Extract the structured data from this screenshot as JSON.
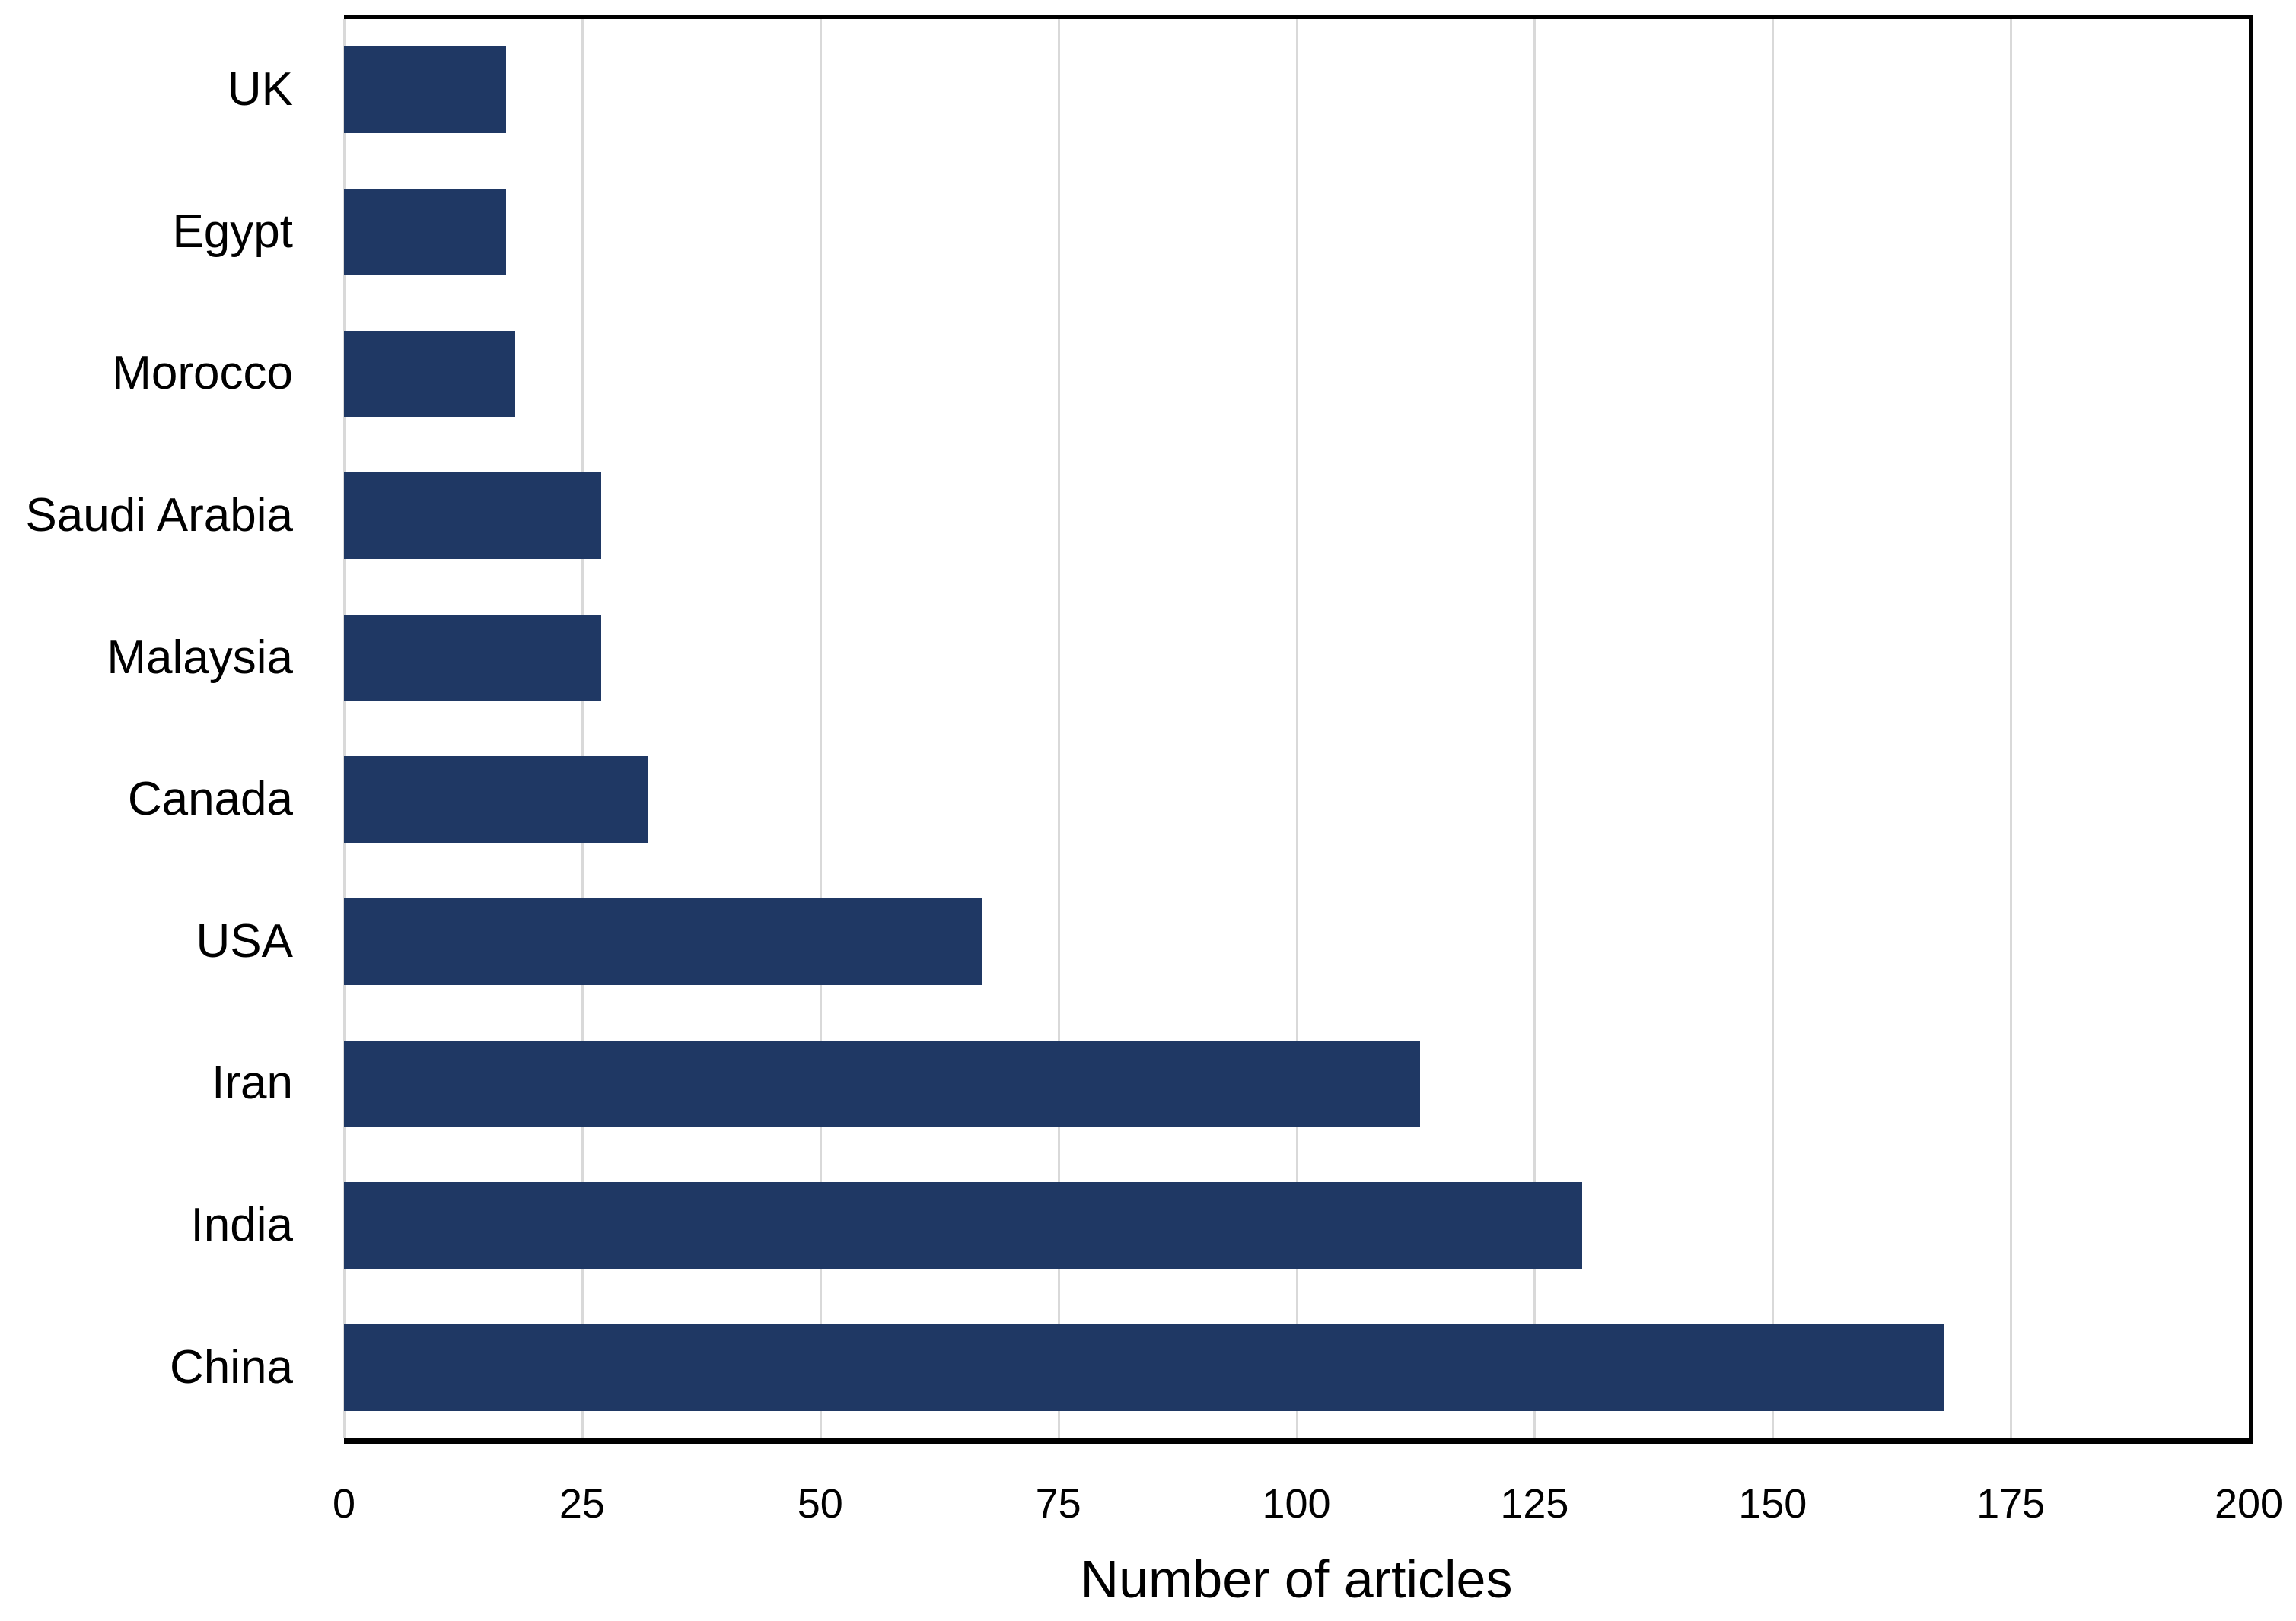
{
  "chart_data": {
    "type": "bar",
    "orientation": "horizontal",
    "title": "",
    "xlabel": "Number of articles",
    "ylabel": "",
    "categories": [
      "UK",
      "Egypt",
      "Morocco",
      "Saudi Arabia",
      "Malaysia",
      "Canada",
      "USA",
      "Iran",
      "India",
      "China"
    ],
    "values": [
      17,
      17,
      18,
      27,
      27,
      32,
      67,
      113,
      130,
      168
    ],
    "xlim": [
      0,
      200
    ],
    "xticks": [
      0,
      25,
      50,
      75,
      100,
      125,
      150,
      175,
      200
    ],
    "grid": true,
    "legend": false,
    "bar_color": "#1f3864",
    "gridline_color": "#d9d9d9",
    "axis_color": "#000000",
    "text_color": "#000000"
  }
}
